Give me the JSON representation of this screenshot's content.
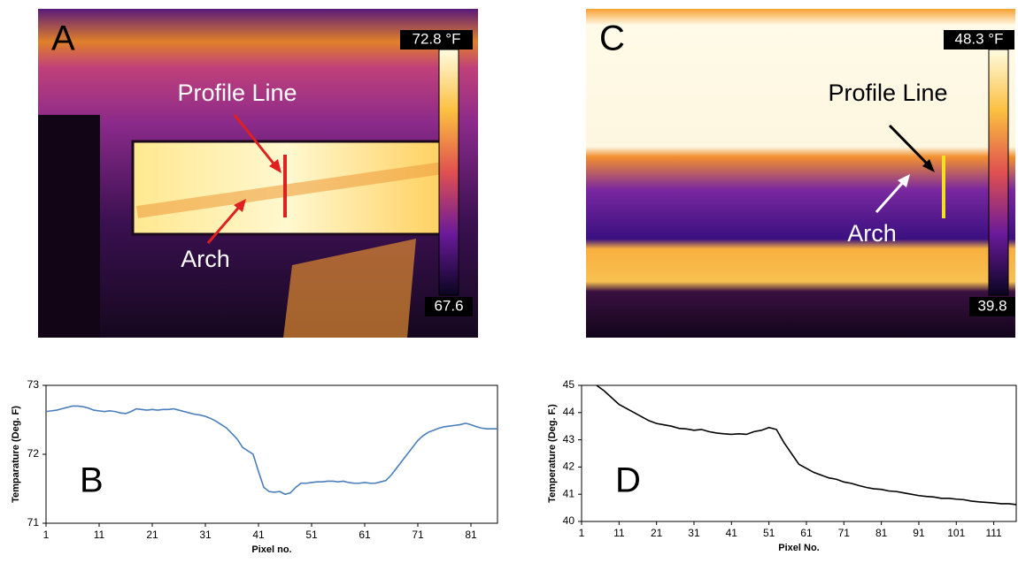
{
  "images": [
    {
      "panel_label": "A",
      "scale_max": "72.8 °F",
      "scale_min": "67.6",
      "annotations": [
        "Profile Line",
        "Arch"
      ]
    },
    {
      "panel_label": "C",
      "scale_max": "48.3 °F",
      "scale_min": "39.8",
      "annotations": [
        "Profile Line",
        "Arch"
      ]
    }
  ],
  "chart_data": [
    {
      "type": "line",
      "panel_label": "B",
      "x_label": "Pixel no.",
      "y_label": "Temparature (Deg. F)",
      "xlim": [
        1,
        86
      ],
      "xticks": [
        1,
        11,
        21,
        31,
        41,
        51,
        61,
        71,
        81
      ],
      "ylim": [
        71,
        73
      ],
      "yticks": [
        71,
        72,
        73
      ],
      "series": [
        {
          "color": "#4a7ebb",
          "x": [
            1,
            2,
            3,
            4,
            5,
            6,
            7,
            8,
            9,
            10,
            11,
            12,
            13,
            14,
            15,
            16,
            17,
            18,
            19,
            20,
            21,
            22,
            23,
            24,
            25,
            26,
            27,
            28,
            29,
            30,
            31,
            32,
            33,
            34,
            35,
            36,
            37,
            38,
            39,
            40,
            41,
            42,
            43,
            44,
            45,
            46,
            47,
            48,
            49,
            50,
            51,
            52,
            53,
            54,
            55,
            56,
            57,
            58,
            59,
            60,
            61,
            62,
            63,
            64,
            65,
            66,
            67,
            68,
            69,
            70,
            71,
            72,
            73,
            74,
            75,
            76,
            77,
            78,
            79,
            80,
            81,
            82,
            83,
            84,
            85,
            86
          ],
          "values": [
            72.62,
            72.63,
            72.64,
            72.66,
            72.68,
            72.7,
            72.7,
            72.69,
            72.67,
            72.64,
            72.63,
            72.62,
            72.63,
            72.62,
            72.6,
            72.59,
            72.62,
            72.66,
            72.65,
            72.64,
            72.65,
            72.64,
            72.65,
            72.65,
            72.66,
            72.64,
            72.62,
            72.6,
            72.58,
            72.57,
            72.55,
            72.52,
            72.48,
            72.43,
            72.38,
            72.3,
            72.22,
            72.1,
            72.05,
            72.0,
            71.75,
            71.52,
            71.46,
            71.45,
            71.46,
            71.42,
            71.44,
            71.52,
            71.58,
            71.58,
            71.59,
            71.6,
            71.6,
            71.61,
            71.61,
            71.6,
            71.61,
            71.59,
            71.58,
            71.58,
            71.59,
            71.58,
            71.58,
            71.6,
            71.62,
            71.7,
            71.8,
            71.9,
            72.0,
            72.1,
            72.2,
            72.27,
            72.32,
            72.35,
            72.38,
            72.4,
            72.41,
            72.42,
            72.43,
            72.45,
            72.43,
            72.4,
            72.38,
            72.37,
            72.37,
            72.37
          ]
        }
      ]
    },
    {
      "type": "line",
      "panel_label": "D",
      "x_label": "Pixel No.",
      "y_label": "Temperature (Deg. F.)",
      "xlim": [
        1,
        117
      ],
      "xticks": [
        1,
        11,
        21,
        31,
        41,
        51,
        61,
        71,
        81,
        91,
        101,
        111
      ],
      "ylim": [
        40,
        45
      ],
      "yticks": [
        40,
        41,
        42,
        43,
        44,
        45
      ],
      "series": [
        {
          "color": "#000000",
          "x": [
            5,
            7,
            9,
            11,
            13,
            15,
            17,
            19,
            21,
            23,
            25,
            27,
            29,
            31,
            33,
            35,
            37,
            39,
            41,
            43,
            45,
            47,
            49,
            51,
            53,
            55,
            57,
            59,
            61,
            63,
            65,
            67,
            69,
            71,
            73,
            75,
            77,
            79,
            81,
            83,
            85,
            87,
            89,
            91,
            93,
            95,
            97,
            99,
            101,
            103,
            105,
            107,
            109,
            111,
            113,
            115,
            117
          ],
          "values": [
            45.0,
            44.8,
            44.55,
            44.3,
            44.15,
            44.0,
            43.85,
            43.7,
            43.6,
            43.55,
            43.5,
            43.42,
            43.4,
            43.35,
            43.38,
            43.3,
            43.25,
            43.22,
            43.2,
            43.22,
            43.2,
            43.3,
            43.35,
            43.45,
            43.38,
            42.9,
            42.5,
            42.1,
            41.95,
            41.8,
            41.7,
            41.6,
            41.55,
            41.45,
            41.4,
            41.32,
            41.25,
            41.2,
            41.18,
            41.12,
            41.1,
            41.05,
            41.0,
            40.95,
            40.92,
            40.9,
            40.85,
            40.85,
            40.82,
            40.8,
            40.75,
            40.72,
            40.7,
            40.68,
            40.65,
            40.65,
            40.62
          ]
        }
      ]
    }
  ]
}
